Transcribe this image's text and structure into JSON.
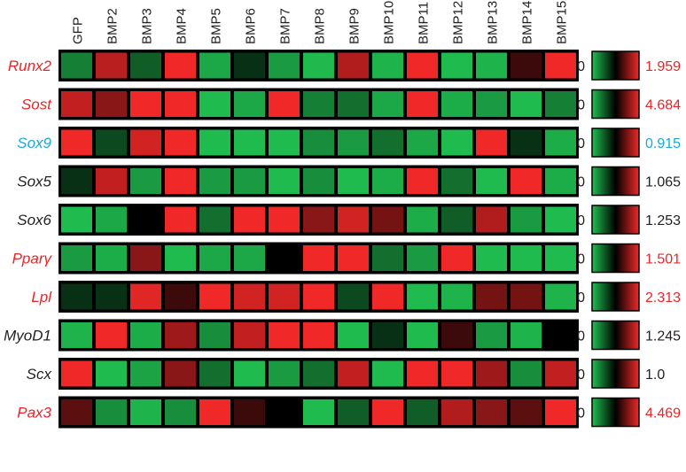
{
  "chart_data": {
    "type": "heatmap",
    "columns": [
      "GFP",
      "BMP2",
      "BMP3",
      "BMP4",
      "BMP5",
      "BMP6",
      "BMP7",
      "BMP8",
      "BMP9",
      "BMP10",
      "BMP11",
      "BMP12",
      "BMP13",
      "BMP14",
      "BMP15"
    ],
    "colormap": {
      "low": "#20c050",
      "mid": "#000000",
      "high": "#f02828"
    },
    "scale_min_label": "0",
    "rows": [
      {
        "gene": "Runx2",
        "label_color": "#e8262a",
        "max_label": "1.959",
        "max_color": "#e8262a",
        "values": [
          0.25,
          0.82,
          0.35,
          1.0,
          0.1,
          0.45,
          0.15,
          0.03,
          0.8,
          0.05,
          1.0,
          0.02,
          0.05,
          0.55,
          1.0
        ]
      },
      {
        "gene": "Sost",
        "label_color": "#e8262a",
        "max_label": "4.684",
        "max_color": "#e8262a",
        "values": [
          0.85,
          0.7,
          1.0,
          1.0,
          0.02,
          0.1,
          1.0,
          0.25,
          0.3,
          0.1,
          1.0,
          0.08,
          0.15,
          0.02,
          0.25
        ]
      },
      {
        "gene": "Sox9",
        "label_color": "#19a9d6",
        "max_label": "0.915",
        "max_color": "#19a9d6",
        "values": [
          1.0,
          0.4,
          0.9,
          1.0,
          0.02,
          0.02,
          0.02,
          0.2,
          0.15,
          0.3,
          0.1,
          0.02,
          1.0,
          0.45,
          0.08
        ]
      },
      {
        "gene": "Sox5",
        "label_color": "#231f20",
        "max_label": "1.065",
        "max_color": "#231f20",
        "values": [
          0.45,
          0.85,
          0.15,
          1.0,
          0.15,
          0.15,
          0.02,
          0.2,
          0.02,
          0.08,
          1.0,
          0.3,
          0.02,
          1.0,
          0.08
        ]
      },
      {
        "gene": "Sox6",
        "label_color": "#231f20",
        "max_label": "1.253",
        "max_color": "#231f20",
        "values": [
          0.02,
          0.1,
          0.5,
          1.0,
          0.3,
          1.0,
          1.0,
          0.7,
          0.9,
          0.65,
          0.08,
          0.35,
          0.8,
          0.15,
          0.02
        ]
      },
      {
        "gene": "Pparγ",
        "label_color": "#e8262a",
        "max_label": "1.501",
        "max_color": "#e8262a",
        "values": [
          0.15,
          0.08,
          0.7,
          0.02,
          0.1,
          0.1,
          0.5,
          1.0,
          1.0,
          0.3,
          0.15,
          1.0,
          0.02,
          0.02,
          0.02
        ]
      },
      {
        "gene": "Lpl",
        "label_color": "#e8262a",
        "max_label": "2.313",
        "max_color": "#e8262a",
        "values": [
          0.45,
          0.45,
          0.95,
          0.55,
          1.0,
          0.9,
          0.9,
          1.0,
          0.4,
          1.0,
          0.02,
          0.05,
          0.65,
          0.65,
          0.05
        ]
      },
      {
        "gene": "MyoD1",
        "label_color": "#231f20",
        "max_label": "1.245",
        "max_color": "#231f20",
        "values": [
          0.05,
          1.0,
          0.08,
          0.75,
          0.2,
          0.85,
          1.0,
          1.0,
          0.02,
          0.45,
          0.02,
          0.55,
          0.15,
          0.05,
          0.5
        ]
      },
      {
        "gene": "Scx",
        "label_color": "#231f20",
        "max_label": "1.0",
        "max_color": "#231f20",
        "values": [
          1.0,
          0.02,
          0.12,
          0.7,
          0.3,
          0.02,
          0.15,
          0.3,
          0.85,
          0.02,
          1.0,
          1.0,
          0.75,
          0.2,
          0.85
        ]
      },
      {
        "gene": "Pax3",
        "label_color": "#e8262a",
        "max_label": "4.469",
        "max_color": "#e8262a",
        "values": [
          0.6,
          0.2,
          0.05,
          0.2,
          1.0,
          0.55,
          0.5,
          0.02,
          0.35,
          1.0,
          0.35,
          0.8,
          0.7,
          0.6,
          1.0
        ]
      }
    ]
  }
}
